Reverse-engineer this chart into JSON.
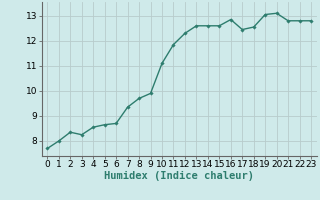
{
  "x": [
    0,
    1,
    2,
    3,
    4,
    5,
    6,
    7,
    8,
    9,
    10,
    11,
    12,
    13,
    14,
    15,
    16,
    17,
    18,
    19,
    20,
    21,
    22,
    23
  ],
  "y": [
    7.7,
    8.0,
    8.35,
    8.25,
    8.55,
    8.65,
    8.7,
    9.35,
    9.7,
    9.9,
    11.1,
    11.85,
    12.3,
    12.6,
    12.6,
    12.6,
    12.85,
    12.45,
    12.55,
    13.05,
    13.1,
    12.8,
    12.8,
    12.8
  ],
  "line_color": "#2e7d6e",
  "marker": "D",
  "marker_size": 1.8,
  "bg_color": "#cfeaea",
  "grid_color_major": "#b8cccc",
  "xlabel": "Humidex (Indice chaleur)",
  "xlabel_fontsize": 7.5,
  "ylabel_ticks": [
    8,
    9,
    10,
    11,
    12,
    13
  ],
  "xlim": [
    -0.5,
    23.5
  ],
  "ylim": [
    7.4,
    13.55
  ],
  "tick_fontsize": 6.5,
  "line_width": 1.0
}
